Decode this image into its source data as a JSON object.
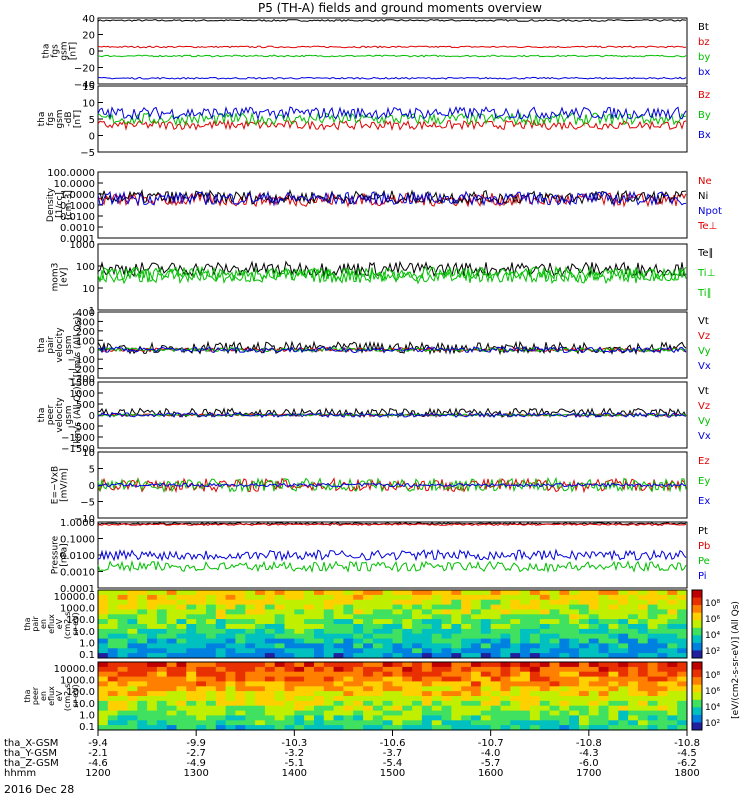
{
  "title": "P5 (TH-A) fields and ground moments overview",
  "date_label": "2016 Dec 28",
  "colors": {
    "black": "#000000",
    "red": "#e00000",
    "green": "#00c000",
    "blue": "#0000e0"
  },
  "chart_data": {
    "type": "line",
    "x": {
      "rows": [
        {
          "label": "tha_X-GSM",
          "values": [
            "-9.4",
            "-9.9",
            "-10.3",
            "-10.6",
            "-10.7",
            "-10.8",
            "-10.8"
          ]
        },
        {
          "label": "tha_Y-GSM",
          "values": [
            "-2.1",
            "-2.7",
            "-3.2",
            "-3.7",
            "-4.0",
            "-4.3",
            "-4.5"
          ]
        },
        {
          "label": "tha_Z-GSM",
          "values": [
            "-4.6",
            "-4.9",
            "-5.1",
            "-5.4",
            "-5.7",
            "-6.0",
            "-6.2"
          ]
        },
        {
          "label": "hhmm",
          "values": [
            "1200",
            "1300",
            "1400",
            "1500",
            "1600",
            "1700",
            "1800"
          ]
        }
      ]
    },
    "panels": [
      {
        "ylabel": [
          "tha",
          "fgs",
          "gsm",
          "[nT]"
        ],
        "yticks": [
          "40",
          "20",
          "0",
          "−20",
          "−40"
        ],
        "ylim": [
          -40,
          40
        ],
        "log": false,
        "series": [
          {
            "name": "Bt",
            "color": "#000000",
            "level": 37,
            "noise": 1
          },
          {
            "name": "bz",
            "color": "#e00000",
            "level": 5,
            "noise": 1
          },
          {
            "name": "by",
            "color": "#00c000",
            "level": -6,
            "noise": 1
          },
          {
            "name": "bx",
            "color": "#0000e0",
            "level": -33,
            "noise": 1
          }
        ]
      },
      {
        "ylabel": [
          "tha",
          "fgs",
          "gsm",
          "-dB",
          "[nT]"
        ],
        "yticks": [
          "15",
          "10",
          "5",
          "0",
          "−5"
        ],
        "ylim": [
          -7,
          15
        ],
        "log": false,
        "series": [
          {
            "name": "Bz",
            "color": "#e00000",
            "level": 2,
            "noise": 1.5
          },
          {
            "name": "By",
            "color": "#00c000",
            "level": 4,
            "noise": 2
          },
          {
            "name": "Bx",
            "color": "#0000e0",
            "level": 6,
            "noise": 2
          }
        ]
      },
      {
        "ylabel": [
          "Density",
          "[1/cc]",
          "[cm-3]"
        ],
        "yticks": [
          "100.0000",
          "10.0000",
          "1.0000",
          "0.1000",
          "0.0100",
          "0.0010",
          "0.0001"
        ],
        "ylim": [
          0.0001,
          100
        ],
        "log": true,
        "series": [
          {
            "name": "Ne",
            "color": "#e00000",
            "level": 0.3,
            "noise": 0.6
          },
          {
            "name": "Ni",
            "color": "#000000",
            "level": 0.5,
            "noise": 0.6
          },
          {
            "name": "Npot",
            "color": "#0000e0",
            "level": 0.4,
            "noise": 0.6
          },
          {
            "name": "Te⊥",
            "color": "#e00000",
            "level": 0,
            "noise": 0
          }
        ]
      },
      {
        "ylabel": [
          "mom3",
          "[eV]"
        ],
        "yticks": [
          "1000",
          "100",
          "10",
          "1"
        ],
        "ylim": [
          1,
          5000
        ],
        "log": true,
        "series": [
          {
            "name": "Te∥",
            "color": "#000000",
            "level": 200,
            "noise": 0.4
          },
          {
            "name": "Ti⊥",
            "color": "#00c000",
            "level": 100,
            "noise": 0.4
          },
          {
            "name": "Ti∥",
            "color": "#00c000",
            "level": 80,
            "noise": 0.4
          }
        ]
      },
      {
        "ylabel": [
          "tha",
          "pair",
          "velocity",
          "gsm",
          "[km/s (All Qs)]"
        ],
        "yticks": [
          "400",
          "300",
          "200",
          "100",
          "0",
          "−100",
          "−200",
          "−300"
        ],
        "ylim": [
          -300,
          400
        ],
        "log": false,
        "series": [
          {
            "name": "Vt",
            "color": "#000000",
            "level": 20,
            "noise": 60
          },
          {
            "name": "Vz",
            "color": "#e00000",
            "level": 0,
            "noise": 20
          },
          {
            "name": "Vy",
            "color": "#00c000",
            "level": 0,
            "noise": 20
          },
          {
            "name": "Vx",
            "color": "#0000e0",
            "level": 0,
            "noise": 30
          }
        ]
      },
      {
        "ylabel": [
          "tha",
          "peer",
          "velocity",
          "gsm",
          "[km/s (All Qs)]"
        ],
        "yticks": [
          "1500",
          "1000",
          "500",
          "0",
          "−500",
          "−1000",
          "−1500"
        ],
        "ylim": [
          -1500,
          1500
        ],
        "log": false,
        "series": [
          {
            "name": "Vt",
            "color": "#000000",
            "level": 100,
            "noise": 200
          },
          {
            "name": "Vz",
            "color": "#e00000",
            "level": 0,
            "noise": 50
          },
          {
            "name": "Vy",
            "color": "#00c000",
            "level": 0,
            "noise": 50
          },
          {
            "name": "Vx",
            "color": "#0000e0",
            "level": 0,
            "noise": 100
          }
        ]
      },
      {
        "ylabel": [
          "E=−VxB",
          "[mV/m]"
        ],
        "yticks": [
          "10",
          "5",
          "0",
          "−5",
          "−10"
        ],
        "ylim": [
          -10,
          10
        ],
        "log": false,
        "series": [
          {
            "name": "Ez",
            "color": "#e00000",
            "level": 0,
            "noise": 2
          },
          {
            "name": "Ey",
            "color": "#00c000",
            "level": 0,
            "noise": 2
          },
          {
            "name": "Ex",
            "color": "#0000e0",
            "level": 0,
            "noise": 0.5
          }
        ]
      },
      {
        "ylabel": [
          "Pressure",
          "[nPa]"
        ],
        "yticks": [
          "1.0000",
          "0.1000",
          "0.0100",
          "0.0010",
          "0.0001"
        ],
        "ylim": [
          0.0001,
          1
        ],
        "log": true,
        "series": [
          {
            "name": "Pt",
            "color": "#000000",
            "level": 0.8,
            "noise": 0.05
          },
          {
            "name": "Pb",
            "color": "#e00000",
            "level": 0.7,
            "noise": 0.05
          },
          {
            "name": "Pe",
            "color": "#00c000",
            "level": 0.002,
            "noise": 0.3
          },
          {
            "name": "Pi",
            "color": "#0000e0",
            "level": 0.01,
            "noise": 0.3
          }
        ]
      }
    ],
    "spectrograms": [
      {
        "ylabel": [
          "tha",
          "pair",
          "en",
          "eflux",
          "eV",
          "(cm2-s-",
          "sr-eV)"
        ],
        "yticks": [
          "10000.0",
          "1000.0",
          "100.0",
          "10.0",
          "1.0",
          "0.1"
        ]
      },
      {
        "ylabel": [
          "tha",
          "peer",
          "en",
          "eflux",
          "eV",
          "(cm2-s-",
          "sr-eV)"
        ],
        "yticks": [
          "10000.0",
          "1000.0",
          "100.0",
          "10.0",
          "1.0",
          "0.1"
        ]
      }
    ],
    "colorbar": {
      "label": "[eV/(cm2-s-sr-eV)] (All Qs)",
      "ticks": [
        "10⁸",
        "10⁶",
        "10⁴",
        "10²"
      ]
    }
  }
}
